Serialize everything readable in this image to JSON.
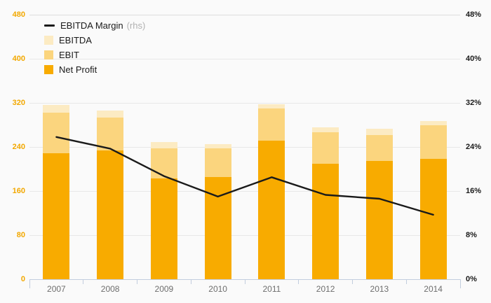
{
  "chart_data": {
    "type": "bar",
    "subtype": "overlaid bars (front-to-back, not stacked) with line overlay on right axis",
    "title": "",
    "categories": [
      "2007",
      "2008",
      "2009",
      "2010",
      "2011",
      "2012",
      "2013",
      "2014"
    ],
    "series": [
      {
        "name": "EBITDA",
        "type": "bar",
        "layer": "back",
        "color": "#FCEBC3",
        "values": [
          316,
          306,
          249,
          245,
          317,
          275,
          273,
          287
        ]
      },
      {
        "name": "EBIT",
        "type": "bar",
        "layer": "middle",
        "color": "#FBD57E",
        "values": [
          302,
          293,
          238,
          237,
          310,
          267,
          262,
          279
        ]
      },
      {
        "name": "Net Profit",
        "type": "bar",
        "layer": "front",
        "color": "#F8AB00",
        "values": [
          229,
          234,
          183,
          186,
          252,
          209,
          215,
          219
        ]
      },
      {
        "name": "EBITDA Margin",
        "type": "line",
        "axis": "right",
        "color": "#1A1A1A",
        "values": [
          25.8,
          23.7,
          18.7,
          15.0,
          18.5,
          15.3,
          14.6,
          11.7
        ]
      }
    ],
    "left_axis": {
      "min": 0,
      "max": 480,
      "ticks": [
        "0",
        "80",
        "160",
        "240",
        "320",
        "400",
        "480"
      ],
      "label_color": "#F2A800"
    },
    "right_axis": {
      "min": 0,
      "max": 48,
      "ticks": [
        "0%",
        "8%",
        "16%",
        "24%",
        "32%",
        "40%",
        "48%"
      ],
      "label_color": "#1A1A1A"
    },
    "legend": [
      {
        "label": "EBITDA Margin",
        "suffix": "(rhs)",
        "swatch": "line",
        "color": "#1A1A1A"
      },
      {
        "label": "EBITDA",
        "suffix": "",
        "swatch": "square",
        "color": "#FCEBC3"
      },
      {
        "label": "EBIT",
        "suffix": "",
        "swatch": "square",
        "color": "#FBD57E"
      },
      {
        "label": "Net Profit",
        "suffix": "",
        "swatch": "square",
        "color": "#F8AB00"
      }
    ],
    "grid": {
      "color": "#E8E8E8",
      "top_line_color": "#DCDCDC",
      "axis_line_color": "#C2CDDE"
    },
    "background": "#FAFAFA",
    "x_label_color": "#6E6E6E",
    "legend_position": "top-left",
    "grid_on": true
  }
}
